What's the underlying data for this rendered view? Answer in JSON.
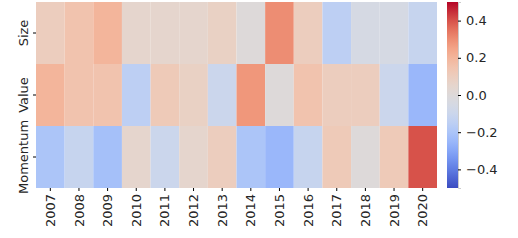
{
  "chart_data": {
    "type": "heatmap",
    "categories": [
      "2007",
      "2008",
      "2009",
      "2010",
      "2011",
      "2012",
      "2013",
      "2014",
      "2015",
      "2016",
      "2017",
      "2018",
      "2019",
      "2020"
    ],
    "rows": [
      "Size",
      "Value",
      "Momentum"
    ],
    "values": [
      [
        0.1,
        0.15,
        0.2,
        0.05,
        0.05,
        0.05,
        0.08,
        0.0,
        0.3,
        0.1,
        -0.15,
        -0.05,
        -0.05,
        -0.12
      ],
      [
        0.2,
        0.15,
        0.15,
        -0.15,
        0.12,
        0.08,
        -0.1,
        0.28,
        0.0,
        0.15,
        0.1,
        0.1,
        -0.1,
        -0.25
      ],
      [
        -0.2,
        -0.12,
        -0.22,
        0.05,
        -0.1,
        0.05,
        0.1,
        -0.2,
        -0.25,
        -0.12,
        0.12,
        0.0,
        0.12,
        0.4
      ]
    ],
    "colorbar_lim": [
      -0.5,
      0.5
    ],
    "colorbar_ticks": [
      -0.4,
      -0.2,
      {
        "value": 0,
        "label": "0.0"
      },
      0.2,
      0.4
    ]
  }
}
